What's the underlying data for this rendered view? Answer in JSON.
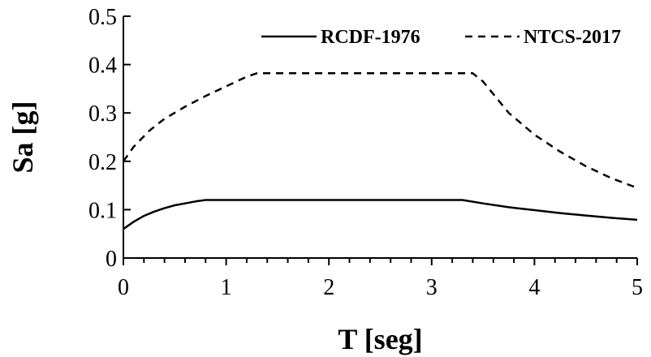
{
  "chart_data": {
    "type": "line",
    "xlabel": "T [seg]",
    "ylabel": "Sa [g]",
    "xlim": [
      0,
      5
    ],
    "ylim": [
      0,
      0.5
    ],
    "x_ticks": [
      0,
      1,
      2,
      3,
      4,
      5
    ],
    "y_ticks": [
      0,
      0.1,
      0.2,
      0.3,
      0.4,
      0.5
    ],
    "x_tick_labels": [
      "0",
      "1",
      "2",
      "3",
      "4",
      "5"
    ],
    "y_tick_labels": [
      "0",
      "0.1",
      "0.2",
      "0.3",
      "0.4",
      "0.5"
    ],
    "grid": false,
    "legend_position": "top-right",
    "series": [
      {
        "name": "RCDF-1976",
        "style": "solid",
        "color": "#000000",
        "x": [
          0,
          0.1,
          0.2,
          0.3,
          0.4,
          0.5,
          0.6,
          0.7,
          0.8,
          1.0,
          1.5,
          2.0,
          2.5,
          3.0,
          3.3,
          3.5,
          3.75,
          4.0,
          4.25,
          4.5,
          4.75,
          5.0
        ],
        "y": [
          0.06,
          0.075,
          0.087,
          0.096,
          0.103,
          0.109,
          0.113,
          0.117,
          0.12,
          0.12,
          0.12,
          0.12,
          0.12,
          0.12,
          0.12,
          0.113,
          0.105,
          0.099,
          0.093,
          0.088,
          0.083,
          0.079
        ]
      },
      {
        "name": "NTCS-2017",
        "style": "dashed",
        "color": "#000000",
        "x": [
          0,
          0.1,
          0.25,
          0.4,
          0.6,
          0.8,
          1.0,
          1.2,
          1.3,
          1.5,
          2.0,
          2.5,
          3.0,
          3.4,
          3.5,
          3.75,
          4.0,
          4.25,
          4.5,
          4.75,
          5.0
        ],
        "y": [
          0.2,
          0.23,
          0.263,
          0.288,
          0.313,
          0.335,
          0.355,
          0.375,
          0.382,
          0.382,
          0.382,
          0.382,
          0.382,
          0.382,
          0.365,
          0.3,
          0.255,
          0.22,
          0.19,
          0.165,
          0.145
        ]
      }
    ]
  }
}
